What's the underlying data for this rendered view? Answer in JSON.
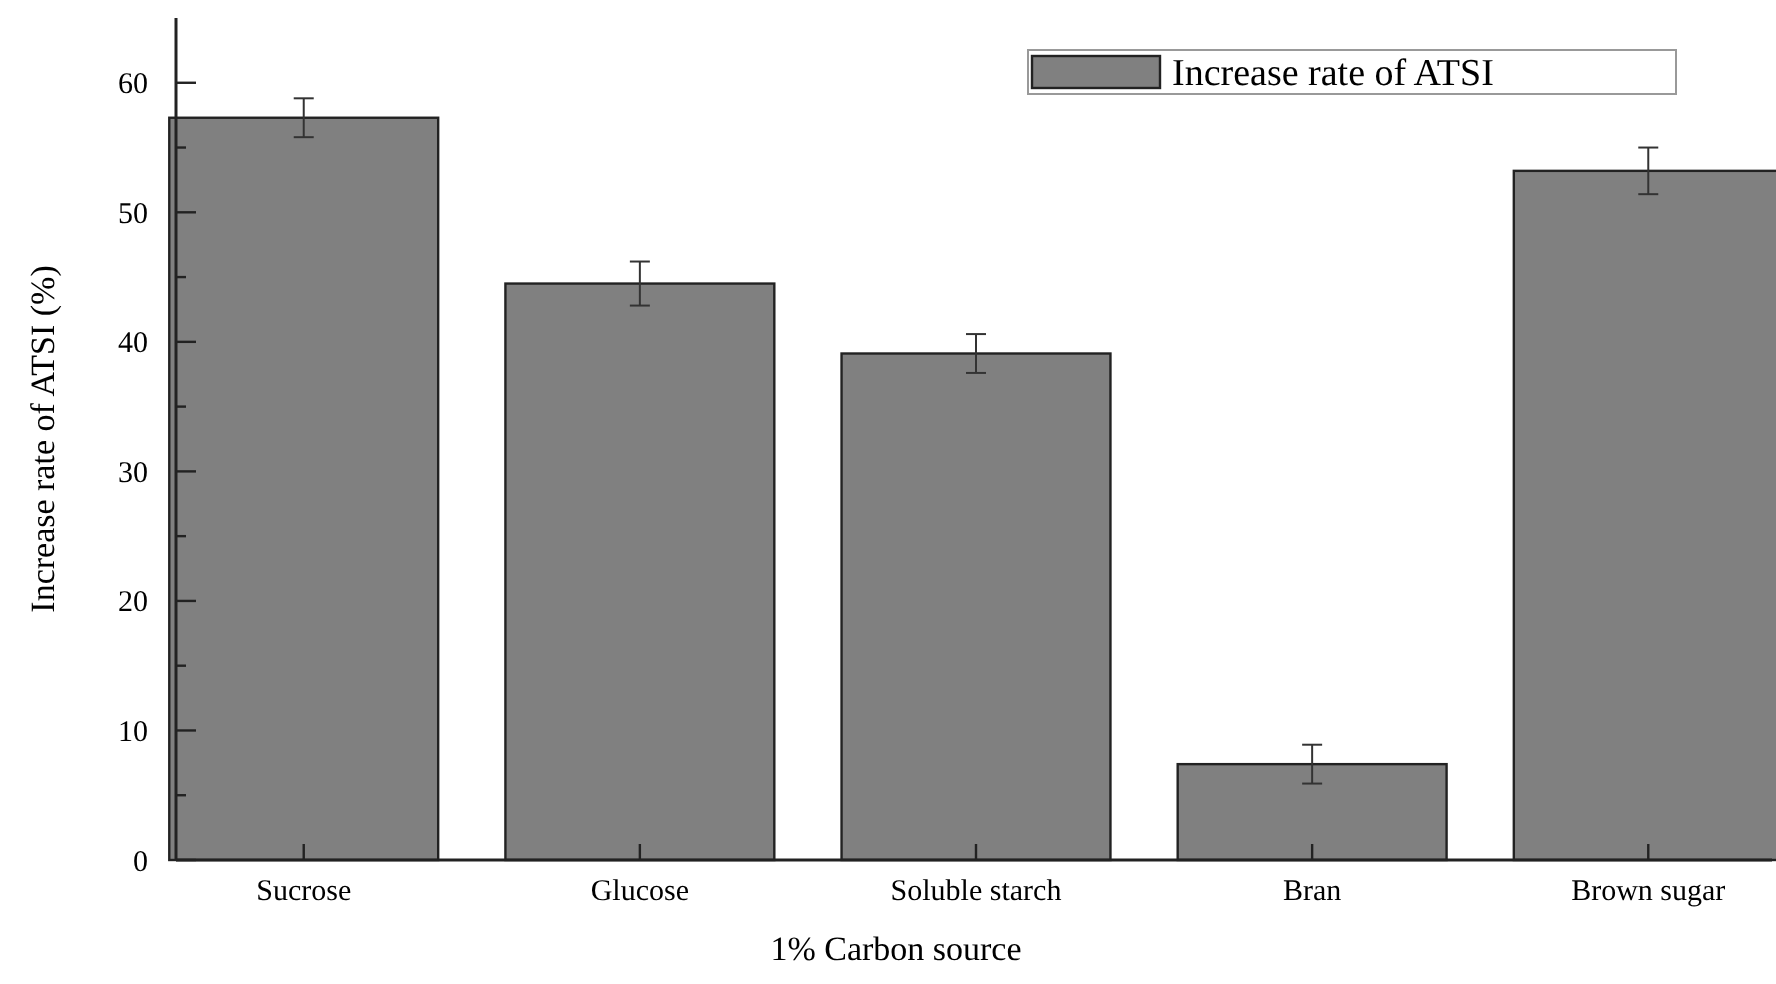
{
  "chart_data": {
    "type": "bar",
    "xlabel": "1% Carbon source",
    "ylabel": "Increase rate of ATSI (%)",
    "categories": [
      "Sucrose",
      "Glucose",
      "Soluble starch",
      "Bran",
      "Brown sugar"
    ],
    "series": [
      {
        "name": "Increase rate of ATSI",
        "color": "#808080",
        "values": [
          57.3,
          44.5,
          39.1,
          7.4,
          53.2
        ],
        "errors": [
          1.5,
          1.7,
          1.5,
          1.5,
          1.8
        ]
      }
    ],
    "ylim": [
      0,
      65
    ],
    "yticks": [
      0,
      {
        "value": 5,
        "label": null
      },
      10,
      {
        "value": 15,
        "label": null
      },
      20,
      {
        "value": 25,
        "label": null
      },
      30,
      {
        "value": 35,
        "label": null
      },
      40,
      {
        "value": 45,
        "label": null
      },
      50,
      {
        "value": 55,
        "label": null
      },
      60
    ],
    "legend": "top right"
  }
}
